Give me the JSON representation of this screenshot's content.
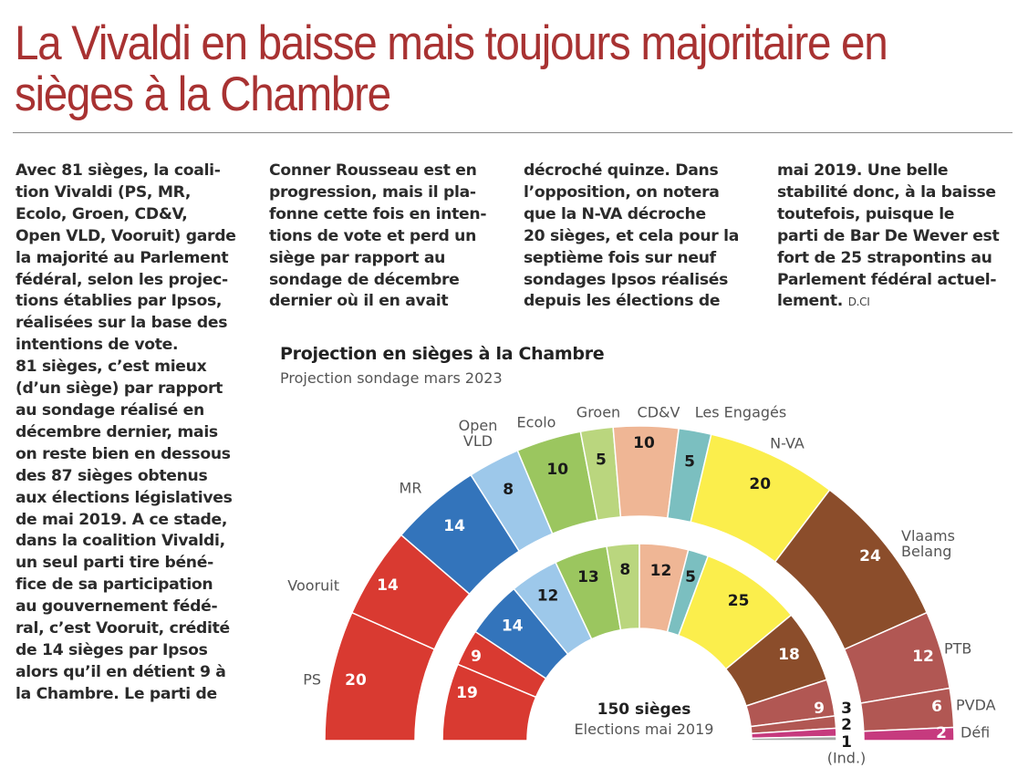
{
  "article": {
    "headline": "La Vivaldi en baisse mais toujours majoritaire en sièges à la Chambre",
    "columns": [
      "Avec 81 sièges, la coali-\ntion Vivaldi (PS, MR,\nEcolo, Groen, CD&V,\nOpen VLD, Vooruit) garde\nla majorité au Parlement\nfédéral, selon les projec-\ntions établies par Ipsos,\nréalisées sur la base des\nintentions de vote.\n81 sièges, c’est mieux\n(d’un siège) par rapport\nau sondage réalisé en\ndécembre dernier, mais\non reste bien en dessous\ndes 87 sièges obtenus\naux élections législatives\nde mai 2019. A ce stade,\ndans la coalition Vivaldi,\nun seul parti tire béné-\nfice de sa participation\nau gouvernement fédé-\nral, c’est Vooruit, crédité\nde 14 sièges par Ipsos\nalors qu’il en détient 9 à\nla Chambre. Le parti de",
      "Conner Rousseau est en\nprogression, mais il pla-\nfonne cette fois en inten-\ntions de vote et perd un\nsiège par rapport au\nsondage de décembre\ndernier où il en avait",
      "décroché quinze. Dans\nl’opposition, on notera\nque la N-VA décroche\n20 sièges, et cela pour la\nseptième fois sur neuf\nsondages Ipsos réalisés\ndepuis les élections de",
      "mai 2019. Une belle\nstabilité donc, à la baisse\ntoutefois, puisque le\nparti de Bar De Wever est\nfort de 25 strapontins au\nParlement fédéral actuel-\nlement."
    ],
    "credit": "D.CI"
  },
  "chart_data": {
    "type": "pie",
    "subtype": "parliament-hemicycle",
    "title": "Projection en sièges à la Chambre",
    "subtitle": "Projection sondage mars 2023",
    "center_total": "150 sièges",
    "center_subtitle": "Elections mai 2019",
    "total_seats": 150,
    "series": [
      {
        "name": "Projection sondage mars 2023",
        "ring": "outer",
        "parties": [
          {
            "party": "PS",
            "label": "PS",
            "seats": 20,
            "color": "#d93a31",
            "text_color": "#ffffff"
          },
          {
            "party": "Vooruit",
            "label": "Vooruit",
            "seats": 14,
            "color": "#d93a31",
            "text_color": "#ffffff"
          },
          {
            "party": "MR",
            "label": "MR",
            "seats": 14,
            "color": "#3374bb",
            "text_color": "#ffffff"
          },
          {
            "party": "Open VLD",
            "label": "Open\nVLD",
            "seats": 8,
            "color": "#9dc8ea",
            "text_color": "#1a1a1a"
          },
          {
            "party": "Ecolo",
            "label": "Ecolo",
            "seats": 10,
            "color": "#9bc65f",
            "text_color": "#1a1a1a"
          },
          {
            "party": "Groen",
            "label": "Groen",
            "seats": 5,
            "color": "#bad67e",
            "text_color": "#1a1a1a"
          },
          {
            "party": "CD&V",
            "label": "CD&V",
            "seats": 10,
            "color": "#efb695",
            "text_color": "#1a1a1a"
          },
          {
            "party": "Les Engagés",
            "label": "Les Engagés",
            "seats": 5,
            "color": "#7bbfc0",
            "text_color": "#1a1a1a"
          },
          {
            "party": "N-VA",
            "label": "N-VA",
            "seats": 20,
            "color": "#fbee4c",
            "text_color": "#1a1a1a"
          },
          {
            "party": "Vlaams Belang",
            "label": "Vlaams\nBelang",
            "seats": 24,
            "color": "#8b4d2b",
            "text_color": "#ffffff"
          },
          {
            "party": "PTB",
            "label": "PTB",
            "seats": 12,
            "color": "#b15753",
            "text_color": "#ffffff"
          },
          {
            "party": "PVDA",
            "label": "PVDA",
            "seats": 6,
            "color": "#b15753",
            "text_color": "#ffffff"
          },
          {
            "party": "Défi",
            "label": "Défi",
            "seats": 2,
            "color": "#c63a7e",
            "text_color": "#ffffff"
          }
        ]
      },
      {
        "name": "Elections mai 2019",
        "ring": "inner",
        "parties": [
          {
            "party": "PS",
            "seats": 19,
            "color": "#d93a31",
            "text_color": "#ffffff"
          },
          {
            "party": "Vooruit",
            "seats": 9,
            "color": "#d93a31",
            "text_color": "#ffffff"
          },
          {
            "party": "MR",
            "seats": 14,
            "color": "#3374bb",
            "text_color": "#ffffff"
          },
          {
            "party": "Open VLD",
            "seats": 12,
            "color": "#9dc8ea",
            "text_color": "#1a1a1a"
          },
          {
            "party": "Ecolo",
            "seats": 13,
            "color": "#9bc65f",
            "text_color": "#1a1a1a"
          },
          {
            "party": "Groen",
            "seats": 8,
            "color": "#bad67e",
            "text_color": "#1a1a1a"
          },
          {
            "party": "CD&V",
            "seats": 12,
            "color": "#efb695",
            "text_color": "#1a1a1a"
          },
          {
            "party": "Les Engagés",
            "seats": 5,
            "color": "#7bbfc0",
            "text_color": "#1a1a1a"
          },
          {
            "party": "N-VA",
            "seats": 25,
            "color": "#fbee4c",
            "text_color": "#1a1a1a"
          },
          {
            "party": "Vlaams Belang",
            "seats": 18,
            "color": "#8b4d2b",
            "text_color": "#ffffff"
          },
          {
            "party": "PTB",
            "seats": 9,
            "color": "#b15753",
            "text_color": "#ffffff"
          },
          {
            "party": "PVDA",
            "seats": 3,
            "color": "#b15753",
            "text_color": "#ffffff"
          },
          {
            "party": "Défi",
            "seats": 2,
            "color": "#c63a7e",
            "text_color": "#ffffff"
          },
          {
            "party": "Ind.",
            "seats": 1,
            "color": "#a6a6a6",
            "text_color": "#1a1a1a"
          }
        ],
        "outside_labels": [
          "3",
          "2",
          "1"
        ],
        "ind_label": "(Ind.)"
      }
    ]
  }
}
